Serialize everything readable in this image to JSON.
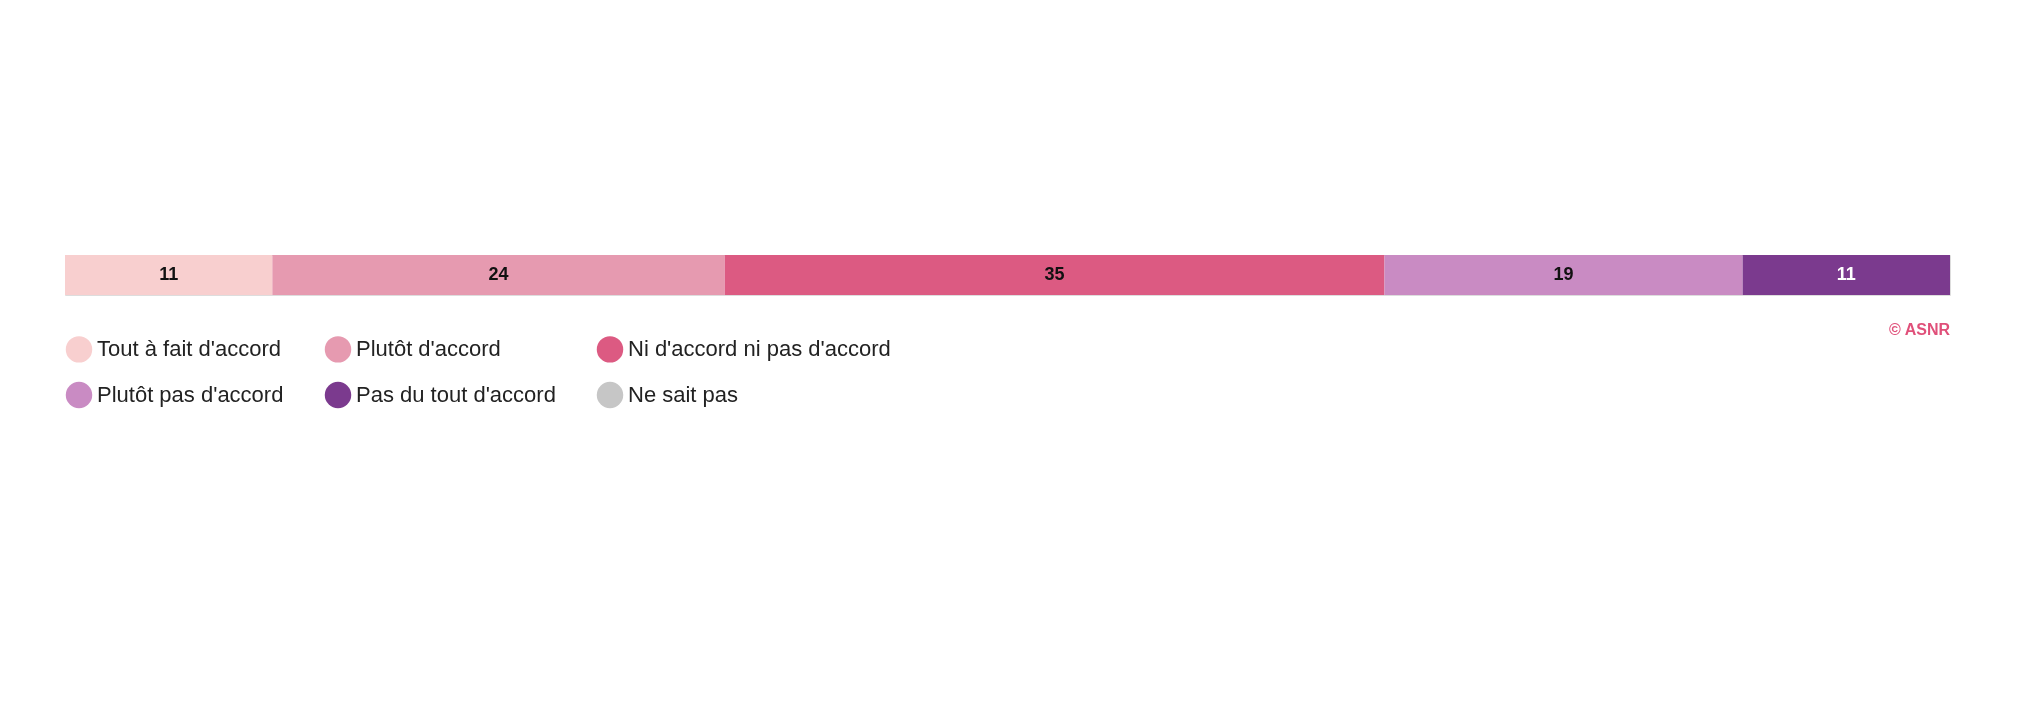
{
  "chart_data": {
    "type": "bar",
    "orientation": "horizontal",
    "stacked": true,
    "data_labels": true,
    "legend": "bottom",
    "categories": [
      null
    ],
    "series": [
      {
        "name": "Tout à fait d'accord",
        "color": "#f8cfcf",
        "values": [
          11
        ]
      },
      {
        "name": "Plutôt d'accord",
        "color": "#e69ab0",
        "values": [
          24
        ]
      },
      {
        "name": "Ni d'accord ni pas d'accord",
        "color": "#dc5a82",
        "values": [
          35
        ]
      },
      {
        "name": "Plutôt pas d'accord",
        "color": "#c98bc3",
        "values": [
          19
        ]
      },
      {
        "name": "Pas du tout d'accord",
        "color": "#7b3a8e",
        "values": [
          11
        ]
      },
      {
        "name": "Ne sait pas",
        "color": "#c6c6c6",
        "values": [
          null
        ]
      }
    ],
    "annotations": [
      "© ASNR"
    ]
  }
}
